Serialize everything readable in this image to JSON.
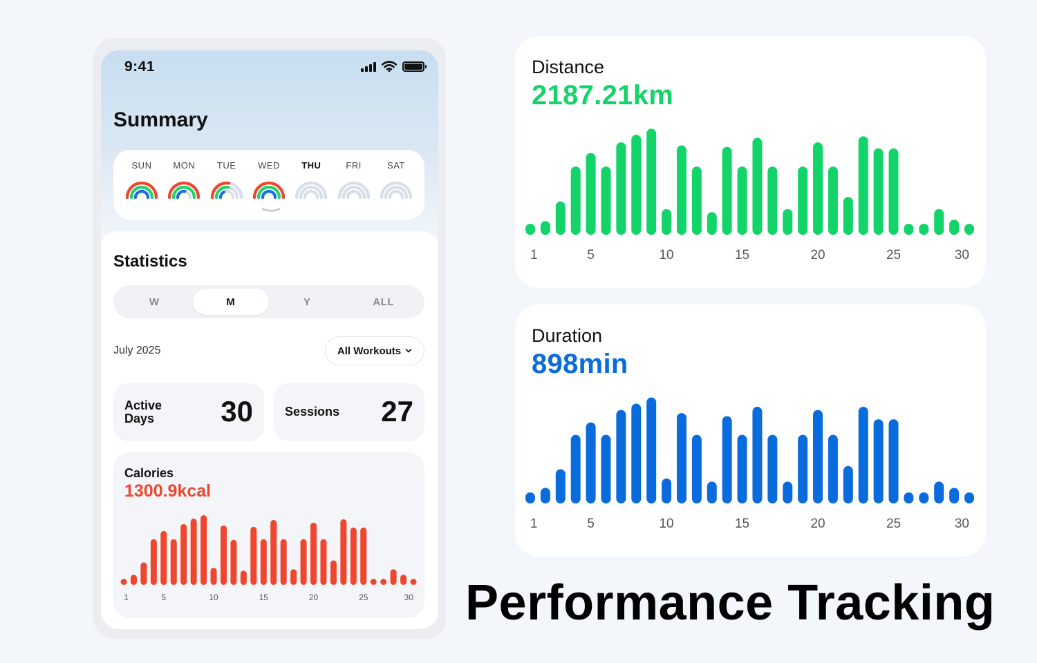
{
  "status_bar": {
    "time": "9:41"
  },
  "summary": {
    "title": "Summary",
    "days": [
      {
        "label": "SUN",
        "progress": [
          1,
          1,
          1
        ],
        "bold": false
      },
      {
        "label": "MON",
        "progress": [
          1,
          1,
          0.55
        ],
        "bold": false
      },
      {
        "label": "TUE",
        "progress": [
          0.55,
          0.55,
          0.35
        ],
        "bold": false
      },
      {
        "label": "WED",
        "progress": [
          1,
          1,
          1
        ],
        "bold": false
      },
      {
        "label": "THU",
        "progress": [
          0,
          0,
          0
        ],
        "bold": true
      },
      {
        "label": "FRI",
        "progress": [
          0,
          0,
          0
        ],
        "bold": false
      },
      {
        "label": "SAT",
        "progress": [
          0,
          0,
          0
        ],
        "bold": false
      }
    ],
    "ring_colors": [
      "#ef4630",
      "#1fd26a",
      "#1a6ee0"
    ],
    "ring_track_color": "#d8dee8"
  },
  "statistics": {
    "title": "Statistics",
    "tabs": [
      "W",
      "M",
      "Y",
      "ALL"
    ],
    "active_tab": "M",
    "period": "July 2025",
    "filter": "All Workouts",
    "active_days": {
      "label_line1": "Active",
      "label_line2": "Days",
      "value": "30"
    },
    "sessions": {
      "label": "Sessions",
      "value": "27"
    },
    "calories": {
      "label": "Calories",
      "value": "1300.9kcal"
    }
  },
  "distance": {
    "label": "Distance",
    "value": "2187.21km"
  },
  "duration": {
    "label": "Duration",
    "value": "898min"
  },
  "headline": "Performance Tracking",
  "colors": {
    "distance": "#12d468",
    "duration": "#0a6cdc",
    "calories": "#ef4630",
    "axis_text": "#555"
  },
  "chart_data": [
    {
      "type": "bar",
      "title": "Distance",
      "x": [
        1,
        2,
        3,
        4,
        5,
        6,
        7,
        8,
        9,
        10,
        11,
        12,
        13,
        14,
        15,
        16,
        17,
        18,
        19,
        20,
        21,
        22,
        23,
        24,
        25,
        26,
        27,
        28,
        29,
        30
      ],
      "xticks": [
        "1",
        "5",
        "10",
        "15",
        "20",
        "25",
        "30"
      ],
      "values": [
        6,
        9,
        22,
        45,
        54,
        45,
        61,
        66,
        70,
        17,
        59,
        45,
        15,
        58,
        45,
        64,
        45,
        17,
        45,
        61,
        45,
        25,
        65,
        57,
        57,
        4,
        4,
        17,
        10,
        6
      ],
      "ylim": [
        0,
        72
      ]
    },
    {
      "type": "bar",
      "title": "Duration",
      "x": [
        1,
        2,
        3,
        4,
        5,
        6,
        7,
        8,
        9,
        10,
        11,
        12,
        13,
        14,
        15,
        16,
        17,
        18,
        19,
        20,
        21,
        22,
        23,
        24,
        25,
        26,
        27,
        28,
        29,
        30
      ],
      "xticks": [
        "1",
        "5",
        "10",
        "15",
        "20",
        "25",
        "30"
      ],
      "values": [
        3,
        5,
        11,
        22,
        26,
        22,
        30,
        32,
        34,
        8,
        29,
        22,
        7,
        28,
        22,
        31,
        22,
        7,
        22,
        30,
        22,
        12,
        31,
        27,
        27,
        2,
        2,
        7,
        5,
        3
      ],
      "ylim": [
        0,
        35
      ]
    },
    {
      "type": "bar",
      "title": "Calories",
      "x": [
        1,
        2,
        3,
        4,
        5,
        6,
        7,
        8,
        9,
        10,
        11,
        12,
        13,
        14,
        15,
        16,
        17,
        18,
        19,
        20,
        21,
        22,
        23,
        24,
        25,
        26,
        27,
        28,
        29,
        30
      ],
      "xticks": [
        "1",
        "5",
        "10",
        "15",
        "20",
        "25",
        "30"
      ],
      "values": [
        9,
        15,
        33,
        67,
        79,
        67,
        89,
        97,
        102,
        25,
        87,
        66,
        21,
        85,
        67,
        95,
        67,
        23,
        67,
        91,
        67,
        36,
        96,
        84,
        84,
        6,
        6,
        23,
        15,
        9
      ],
      "ylim": [
        0,
        105
      ]
    }
  ]
}
